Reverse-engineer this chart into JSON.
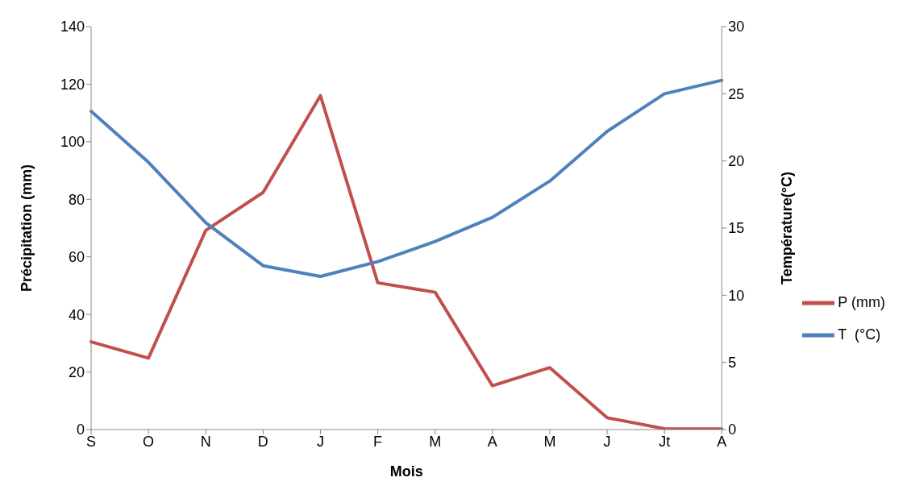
{
  "chart_data": {
    "type": "line",
    "xlabel": "Mois",
    "ylabel": "Précipitation (mm)",
    "y2label": "Température(°C)",
    "categories": [
      "S",
      "O",
      "N",
      "D",
      "J",
      "F",
      "M",
      "A",
      "M",
      "J",
      "Jt",
      "A"
    ],
    "series": [
      {
        "name": "P (mm)",
        "color": "#c0504d",
        "values": [
          30.5,
          24.8,
          69.2,
          82.4,
          116,
          51,
          47.7,
          15.2,
          21.5,
          4.1,
          0.3,
          0.2
        ]
      },
      {
        "name": "T  (°C)",
        "color": "#4f81bd",
        "axis": "y2",
        "values": [
          23.7,
          19.9,
          15.4,
          12.2,
          11.4,
          12.5,
          14.0,
          15.8,
          18.5,
          22.2,
          25.0,
          26.0
        ]
      }
    ],
    "ylim": [
      0,
      140
    ],
    "yticks": [
      0,
      20,
      40,
      60,
      80,
      100,
      120,
      140
    ],
    "y2lim": [
      0,
      30
    ],
    "y2ticks": [
      0,
      5,
      10,
      15,
      20,
      25,
      30
    ],
    "grid": false,
    "legend": "right",
    "marker": "none",
    "line_style": "solid"
  }
}
